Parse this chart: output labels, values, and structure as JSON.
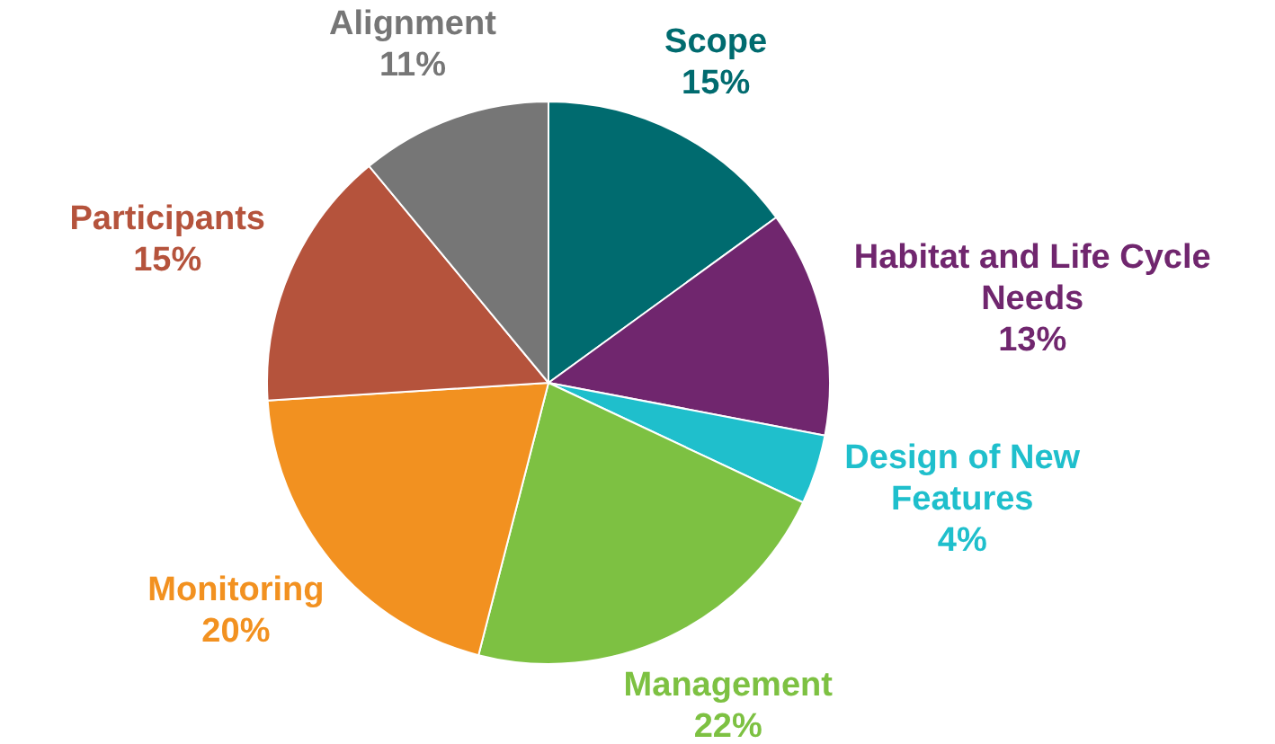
{
  "chart_data": {
    "type": "pie",
    "categories": [
      "Scope",
      "Habitat and Life Cycle Needs",
      "Design of New Features",
      "Management",
      "Monitoring",
      "Participants",
      "Alignment"
    ],
    "values": [
      15,
      13,
      4,
      22,
      20,
      15,
      11
    ],
    "colors": [
      "#006b6f",
      "#70266e",
      "#1fbfcc",
      "#7dc142",
      "#f29120",
      "#b5533c",
      "#767676"
    ],
    "value_labels": [
      "15%",
      "13%",
      "4%",
      "22%",
      "20%",
      "15%",
      "11%"
    ],
    "legend": false
  }
}
